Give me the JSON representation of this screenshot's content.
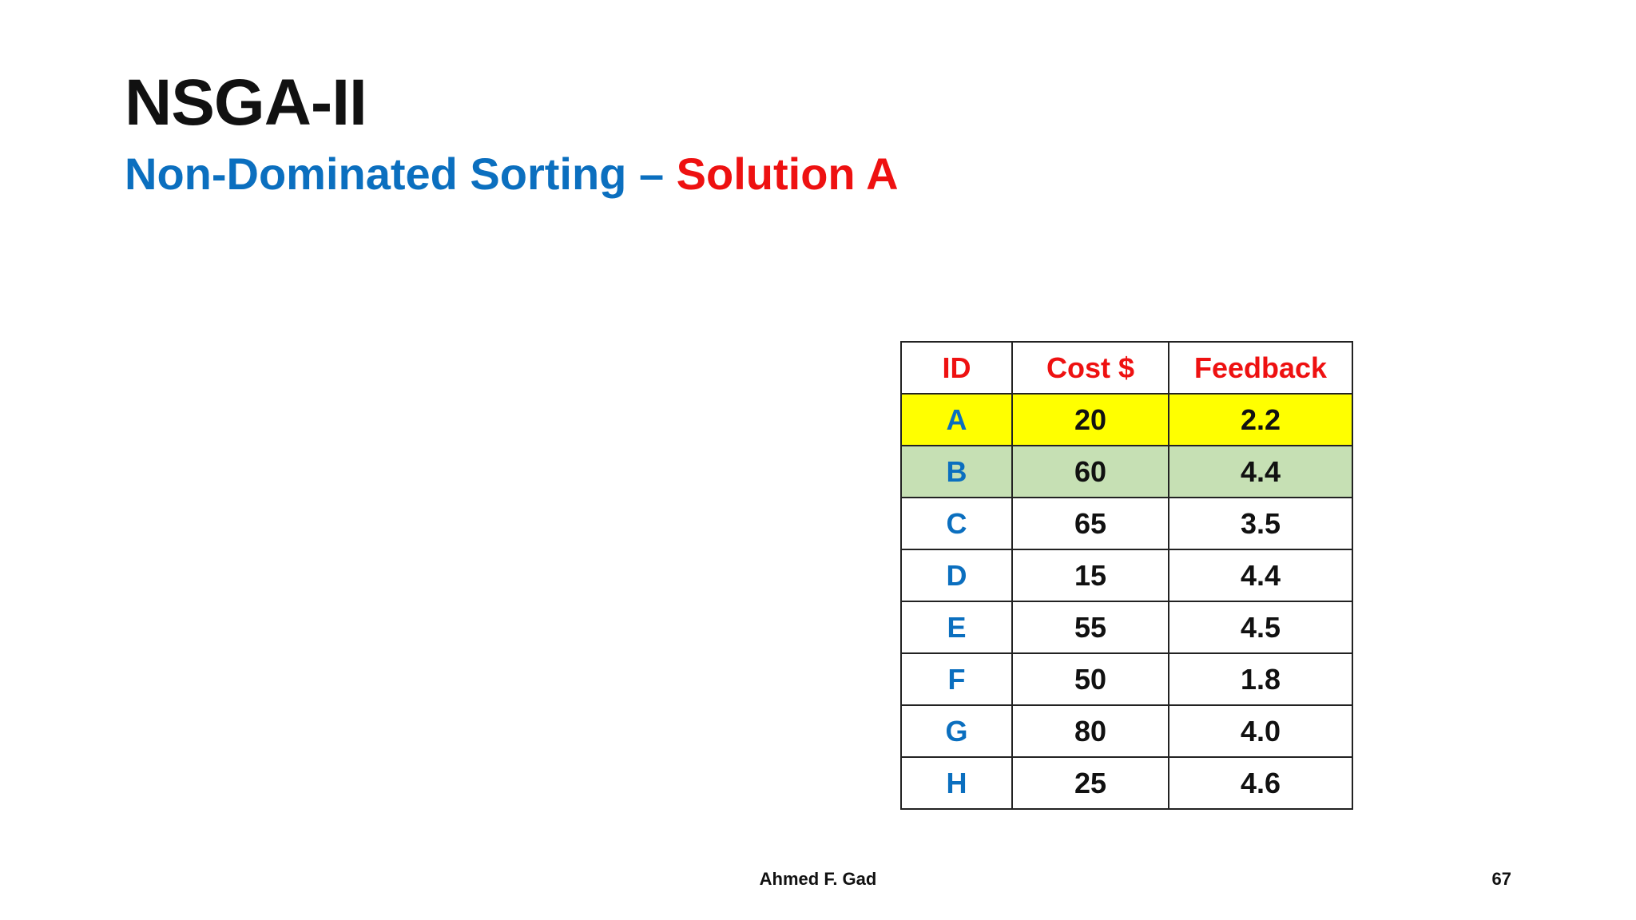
{
  "slide": {
    "title": "NSGA-II",
    "subtitle_blue": "Non-Dominated Sorting – ",
    "subtitle_red": "Solution A",
    "footer_author": "Ahmed F. Gad",
    "page_number": "67"
  },
  "table": {
    "headers": [
      "ID",
      "Cost $",
      "Feedback"
    ],
    "rows": [
      {
        "id": "A",
        "cost": "20",
        "feedback": "2.2",
        "highlight": "yellow"
      },
      {
        "id": "B",
        "cost": "60",
        "feedback": "4.4",
        "highlight": "green"
      },
      {
        "id": "C",
        "cost": "65",
        "feedback": "3.5",
        "highlight": "none"
      },
      {
        "id": "D",
        "cost": "15",
        "feedback": "4.4",
        "highlight": "none"
      },
      {
        "id": "E",
        "cost": "55",
        "feedback": "4.5",
        "highlight": "none"
      },
      {
        "id": "F",
        "cost": "50",
        "feedback": "1.8",
        "highlight": "none"
      },
      {
        "id": "G",
        "cost": "80",
        "feedback": "4.0",
        "highlight": "none"
      },
      {
        "id": "H",
        "cost": "25",
        "feedback": "4.6",
        "highlight": "none"
      }
    ]
  },
  "colors": {
    "title": "#111111",
    "subtitle_blue": "#0b6fbf",
    "subtitle_red": "#ee1111",
    "header_text": "#ee1111",
    "id_text": "#0b6fbf",
    "highlight_yellow": "#ffff00",
    "highlight_green": "#c6e0b4"
  }
}
